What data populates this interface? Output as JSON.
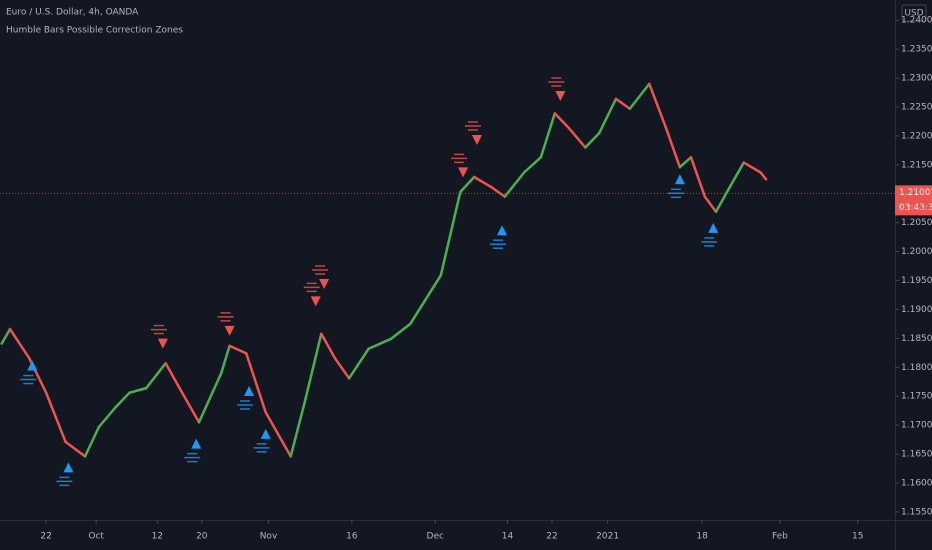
{
  "chart_data": {
    "type": "line",
    "title": "Euro / U.S. Dollar, 4h, OANDA",
    "subtitle": "Humble Bars Possible Correction Zones",
    "currency": "USD",
    "x": [
      13,
      14.5,
      18,
      21,
      24.5,
      28,
      30.5,
      33.5,
      36,
      39,
      42.5,
      45,
      48.5,
      52.5,
      54,
      57,
      60.5,
      65,
      67.5,
      70.5,
      73,
      75.5,
      79,
      83,
      86.5,
      92,
      95.5,
      98,
      101,
      103.5,
      107,
      110,
      112.5,
      115,
      118,
      120.5,
      123.5,
      126,
      129.5,
      132.5,
      135,
      137,
      139.5,
      141.5,
      144,
      146.5,
      149.5,
      150.5
    ],
    "values": [
      1.1841,
      1.1866,
      1.1815,
      1.1756,
      1.1671,
      1.1646,
      1.1697,
      1.1731,
      1.1756,
      1.1764,
      1.1807,
      1.1764,
      1.1705,
      1.179,
      1.1837,
      1.1824,
      1.1722,
      1.1646,
      1.1739,
      1.1858,
      1.1815,
      1.1781,
      1.1832,
      1.1849,
      1.1875,
      1.1959,
      1.2103,
      1.2129,
      1.2112,
      1.2095,
      1.2137,
      1.2163,
      1.2239,
      1.2214,
      1.218,
      1.2205,
      1.2264,
      1.2247,
      1.229,
      1.2214,
      1.2146,
      1.2163,
      1.2095,
      1.2069,
      1.2112,
      1.2154,
      1.2137,
      1.2125
    ],
    "up_color": "#4caf50",
    "down_color": "#ef5350",
    "sell_signals": {
      "x": [
        42,
        54,
        69.5,
        71,
        96,
        98.5,
        113.5
      ],
      "values": [
        1.1841,
        1.1863,
        1.1914,
        1.1944,
        1.2137,
        1.2193,
        1.2269
      ],
      "color": "#ef5350"
    },
    "buy_signals": {
      "x": [
        18.5,
        25,
        48,
        57.5,
        60.5,
        103,
        135,
        141
      ],
      "values": [
        1.1803,
        1.1627,
        1.1668,
        1.1759,
        1.1685,
        1.2037,
        1.2125,
        1.2041
      ],
      "color": "#2196f3"
    },
    "last_price": 1.21007,
    "last_price_color": "#ef5350",
    "countdown": "03:43:36",
    "xlim": [
      12.7,
      173.7
    ],
    "ylim": [
      1.1536,
      1.2435
    ],
    "xticks": [
      {
        "value": 21,
        "label": "22"
      },
      {
        "value": 30,
        "label": "Oct"
      },
      {
        "value": 41,
        "label": "12"
      },
      {
        "value": 49,
        "label": "20"
      },
      {
        "value": 61,
        "label": "Nov"
      },
      {
        "value": 76,
        "label": "16"
      },
      {
        "value": 91,
        "label": "Dec"
      },
      {
        "value": 104,
        "label": "14"
      },
      {
        "value": 112,
        "label": "22"
      },
      {
        "value": 122,
        "label": "2021"
      },
      {
        "value": 139,
        "label": "18"
      },
      {
        "value": 153,
        "label": "Feb"
      },
      {
        "value": 167,
        "label": "15"
      }
    ],
    "yticks": [
      {
        "value": 1.155,
        "label": "1.15500"
      },
      {
        "value": 1.16,
        "label": "1.16000"
      },
      {
        "value": 1.165,
        "label": "1.16500"
      },
      {
        "value": 1.17,
        "label": "1.17000"
      },
      {
        "value": 1.175,
        "label": "1.17500"
      },
      {
        "value": 1.18,
        "label": "1.18000"
      },
      {
        "value": 1.185,
        "label": "1.18500"
      },
      {
        "value": 1.19,
        "label": "1.19000"
      },
      {
        "value": 1.195,
        "label": "1.19500"
      },
      {
        "value": 1.2,
        "label": "1.20000"
      },
      {
        "value": 1.205,
        "label": "1.20500"
      },
      {
        "value": 1.21,
        "label": "1.21000"
      },
      {
        "value": 1.215,
        "label": "1.21500"
      },
      {
        "value": 1.22,
        "label": "1.22000"
      },
      {
        "value": 1.225,
        "label": "1.22500"
      },
      {
        "value": 1.23,
        "label": "1.23000"
      },
      {
        "value": 1.235,
        "label": "1.23500"
      },
      {
        "value": 1.24,
        "label": "1.24000"
      }
    ],
    "grid": false
  }
}
